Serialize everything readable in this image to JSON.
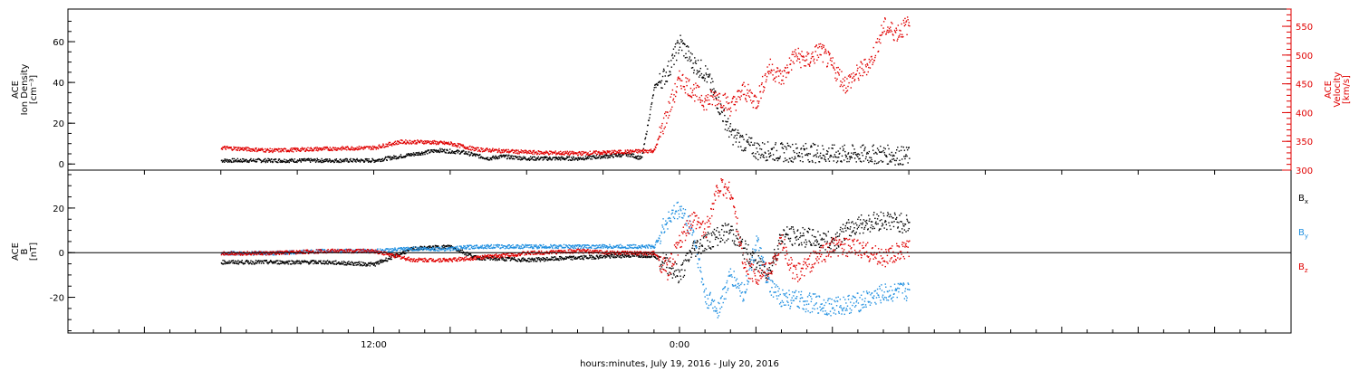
{
  "xlabel": "hours:minutes, July 19, 2016 - July 20, 2016",
  "x_tick_labels": [
    {
      "hour": 12,
      "label": "12:00"
    },
    {
      "hour": 24,
      "label": "0:00"
    }
  ],
  "colors": {
    "black": "#000000",
    "red": "#e00000",
    "blue": "#1f8fe0"
  },
  "chart_data": [
    {
      "type": "scatter",
      "name": "top-panel",
      "x_units": "hours since 2016-07-19 00:00",
      "xlim": [
        0,
        48
      ],
      "ylabel_lines": [
        "ACE",
        "Ion Density",
        "[cm⁻³]"
      ],
      "ylim": [
        -3,
        76
      ],
      "yticks": [
        0,
        20,
        40,
        60
      ],
      "y2label_lines": [
        "ACE",
        "Velocity",
        "[km/s]"
      ],
      "y2lim": [
        300,
        580
      ],
      "y2ticks": [
        300,
        350,
        400,
        450,
        500,
        550
      ],
      "series": [
        {
          "axis": "left",
          "color": "#000000",
          "x": [
            6.0,
            8.0,
            10.0,
            12.0,
            13.5,
            14.5,
            15.5,
            16.5,
            17.0,
            18.0,
            19.0,
            20.0,
            21.0,
            22.0,
            22.5,
            23.0,
            23.5,
            24.0,
            24.5,
            25.0,
            25.5,
            26.0,
            27.0,
            28.0,
            29.0,
            30.0,
            31.0,
            32.0,
            33.0
          ],
          "y": [
            2,
            2,
            2,
            2,
            5,
            7,
            6,
            3,
            4,
            3,
            3,
            3,
            4,
            5,
            3,
            38,
            45,
            60,
            50,
            45,
            30,
            15,
            7,
            6,
            6,
            5,
            5,
            5,
            4
          ]
        },
        {
          "axis": "right",
          "color": "#e00000",
          "x": [
            6.0,
            8.0,
            10.0,
            12.0,
            13.0,
            14.0,
            15.0,
            16.0,
            18.0,
            20.0,
            22.0,
            23.0,
            23.5,
            24.0,
            24.5,
            25.0,
            25.5,
            26.0,
            26.5,
            27.0,
            27.5,
            28.0,
            28.5,
            29.0,
            29.5,
            30.0,
            30.5,
            31.0,
            31.5,
            32.0,
            32.5,
            33.0
          ],
          "y": [
            340,
            335,
            338,
            340,
            350,
            350,
            347,
            337,
            332,
            330,
            333,
            335,
            400,
            460,
            440,
            420,
            430,
            410,
            440,
            420,
            480,
            460,
            500,
            490,
            510,
            480,
            450,
            470,
            490,
            550,
            540,
            555
          ]
        }
      ]
    },
    {
      "type": "scatter",
      "name": "bottom-panel",
      "x_units": "hours since 2016-07-19 00:00",
      "xlim": [
        0,
        48
      ],
      "ylabel_lines": [
        "ACE",
        "B",
        "[nT]"
      ],
      "ylim": [
        -36,
        37
      ],
      "yticks": [
        -20,
        0,
        20
      ],
      "zero_line": true,
      "legend": [
        "Bx",
        "By",
        "Bz"
      ],
      "series": [
        {
          "name": "Bx",
          "color": "#000000",
          "x": [
            6.0,
            8.0,
            10.0,
            12.0,
            13.5,
            15.0,
            16.0,
            18.0,
            20.0,
            22.0,
            23.0,
            23.5,
            24.0,
            24.5,
            25.0,
            25.5,
            26.0,
            26.5,
            27.0,
            27.5,
            28.0,
            29.0,
            30.0,
            30.5,
            31.0,
            32.0,
            33.0
          ],
          "y": [
            -4,
            -4,
            -4,
            -5,
            2,
            3,
            -2,
            -3,
            -2,
            -1,
            -1,
            -5,
            -10,
            2,
            5,
            8,
            10,
            2,
            -5,
            -8,
            8,
            7,
            5,
            10,
            13,
            15,
            13
          ]
        },
        {
          "name": "By",
          "color": "#1f8fe0",
          "x": [
            6.0,
            8.0,
            10.0,
            12.0,
            13.5,
            15.0,
            16.0,
            17.0,
            18.0,
            20.0,
            22.0,
            23.0,
            23.5,
            24.0,
            24.5,
            25.0,
            25.5,
            26.0,
            26.5,
            27.0,
            27.5,
            28.0,
            29.0,
            30.0,
            31.0,
            32.0,
            33.0
          ],
          "y": [
            0,
            0,
            1,
            1,
            2,
            2,
            3,
            3,
            3,
            3,
            3,
            3,
            15,
            20,
            10,
            -20,
            -25,
            -10,
            -18,
            5,
            -15,
            -20,
            -22,
            -24,
            -22,
            -18,
            -17
          ]
        },
        {
          "name": "Bz",
          "color": "#e00000",
          "x": [
            6.0,
            8.0,
            10.0,
            12.0,
            13.5,
            15.0,
            16.0,
            18.0,
            20.0,
            22.0,
            23.0,
            23.5,
            24.0,
            24.5,
            25.0,
            25.5,
            26.0,
            26.5,
            27.0,
            27.5,
            28.0,
            28.5,
            29.0,
            30.0,
            31.0,
            32.0,
            33.0
          ],
          "y": [
            0,
            0,
            1,
            1,
            -3,
            -3,
            -2,
            0,
            1,
            0,
            0,
            -8,
            5,
            15,
            10,
            30,
            28,
            -5,
            -10,
            -8,
            5,
            -10,
            -5,
            3,
            2,
            -2,
            2
          ]
        }
      ]
    }
  ]
}
